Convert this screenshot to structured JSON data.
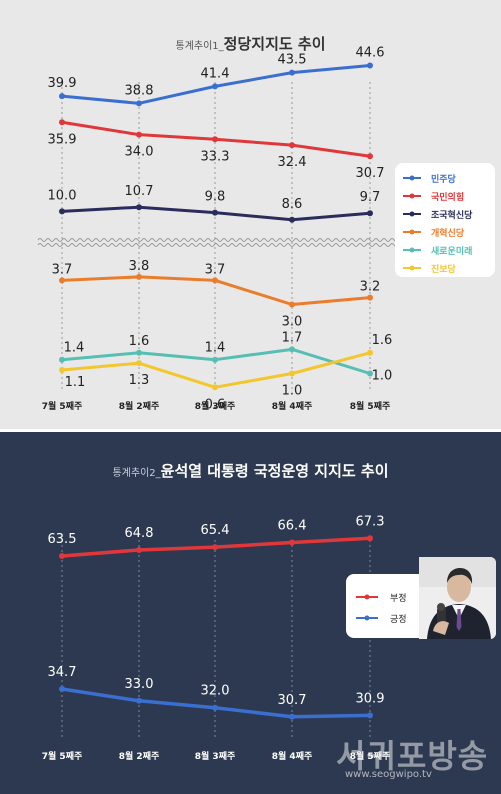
{
  "top": {
    "title_prefix": "통계추이1_",
    "title": "정당지지도 추이"
  },
  "bottom": {
    "title_prefix": "통계추이2_",
    "title": "윤석열 대통령 국정운영 지지도 추이"
  },
  "watermark": {
    "text": "서귀포방송",
    "url": "www.seogwipo.tv"
  },
  "chart_data": [
    {
      "type": "line",
      "title": "정당지지도 추이",
      "categories": [
        "7월 5째주",
        "8월 2째주",
        "8월 3째주",
        "8월 4째주",
        "8월 5째주"
      ],
      "broken_axis": true,
      "series": [
        {
          "name": "민주당",
          "color": "#3a6fd0",
          "values": [
            39.9,
            38.8,
            41.4,
            43.5,
            44.6
          ]
        },
        {
          "name": "국민의힘",
          "color": "#e0383a",
          "values": [
            35.9,
            34.0,
            33.3,
            32.4,
            30.7
          ]
        },
        {
          "name": "조국혁신당",
          "color": "#2a2d5c",
          "values": [
            10.0,
            10.7,
            9.8,
            8.6,
            9.7
          ]
        },
        {
          "name": "개혁신당",
          "color": "#ea7d2c",
          "values": [
            3.7,
            3.8,
            3.7,
            3.0,
            3.2
          ]
        },
        {
          "name": "새로운미래",
          "color": "#56bfb3",
          "values": [
            1.4,
            1.6,
            1.4,
            1.7,
            1.0
          ]
        },
        {
          "name": "진보당",
          "color": "#f3c62c",
          "values": [
            1.1,
            1.3,
            0.6,
            1.0,
            1.6
          ]
        }
      ],
      "legend_position": "right"
    },
    {
      "type": "line",
      "title": "윤석열 대통령 국정운영 지지도 추이",
      "categories": [
        "7월 5째주",
        "8월 2째주",
        "8월 3째주",
        "8월 4째주",
        "8월 5째주"
      ],
      "series": [
        {
          "name": "부정",
          "color": "#e0383a",
          "values": [
            63.5,
            64.8,
            65.4,
            66.4,
            67.3
          ]
        },
        {
          "name": "긍정",
          "color": "#3a6fd0",
          "values": [
            34.7,
            33.0,
            32.0,
            30.7,
            30.9
          ]
        }
      ],
      "legend_position": "right"
    }
  ]
}
